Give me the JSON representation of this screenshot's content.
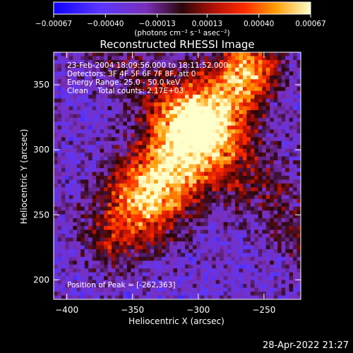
{
  "chart_data": {
    "type": "heatmap",
    "title": "Reconstructed RHESSI Image",
    "xlabel": "Heliocentric X (arcsec)",
    "ylabel": "Heliocentric Y (arcsec)",
    "xlim": [
      -410,
      -222
    ],
    "ylim": [
      185,
      375
    ],
    "x_ticks": [
      -400,
      -350,
      -300,
      -250
    ],
    "x_tick_labels": [
      "−400",
      "−350",
      "−300",
      "−250"
    ],
    "y_ticks": [
      200,
      250,
      300,
      350
    ],
    "y_tick_labels": [
      "200",
      "250",
      "300",
      "350"
    ],
    "grid": false,
    "colorbar": {
      "range": [
        -0.00067,
        0.00067
      ],
      "ticks": [
        -0.00067,
        -0.0004,
        -0.00013,
        0.00013,
        0.0004,
        0.00067
      ],
      "tick_labels": [
        "−0.00067",
        "−0.00040",
        "−0.00013",
        "0.00013",
        "0.00040",
        "0.00067"
      ],
      "unit_label": "(photons cm⁻² s⁻¹ asec⁻²)",
      "stops": [
        {
          "v": 0.0,
          "color": "#1000ff"
        },
        {
          "v": 0.18,
          "color": "#5a37ff"
        },
        {
          "v": 0.36,
          "color": "#7a2fb8"
        },
        {
          "v": 0.5,
          "color": "#2a0608"
        },
        {
          "v": 0.62,
          "color": "#b01008"
        },
        {
          "v": 0.74,
          "color": "#ff2a00"
        },
        {
          "v": 0.86,
          "color": "#ff9a00"
        },
        {
          "v": 1.0,
          "color": "#ffffcc"
        }
      ]
    },
    "annotations": {
      "time_range": "23-Feb-2004 18:09:56.000 to 18:11:52.000",
      "detectors": "Detectors: 3F 4F 5F 6F 7F 8F, att 0",
      "energy_range": "Energy Range: 25.0 - 50.0 keV",
      "method_counts": "Clean    Total counts: 2.17E+03",
      "peak_position": "Position of Peak = [-262,363]"
    },
    "peak": {
      "x": -262,
      "y": 363
    }
  },
  "footer": {
    "timestamp": "28-Apr-2022 21:27"
  }
}
